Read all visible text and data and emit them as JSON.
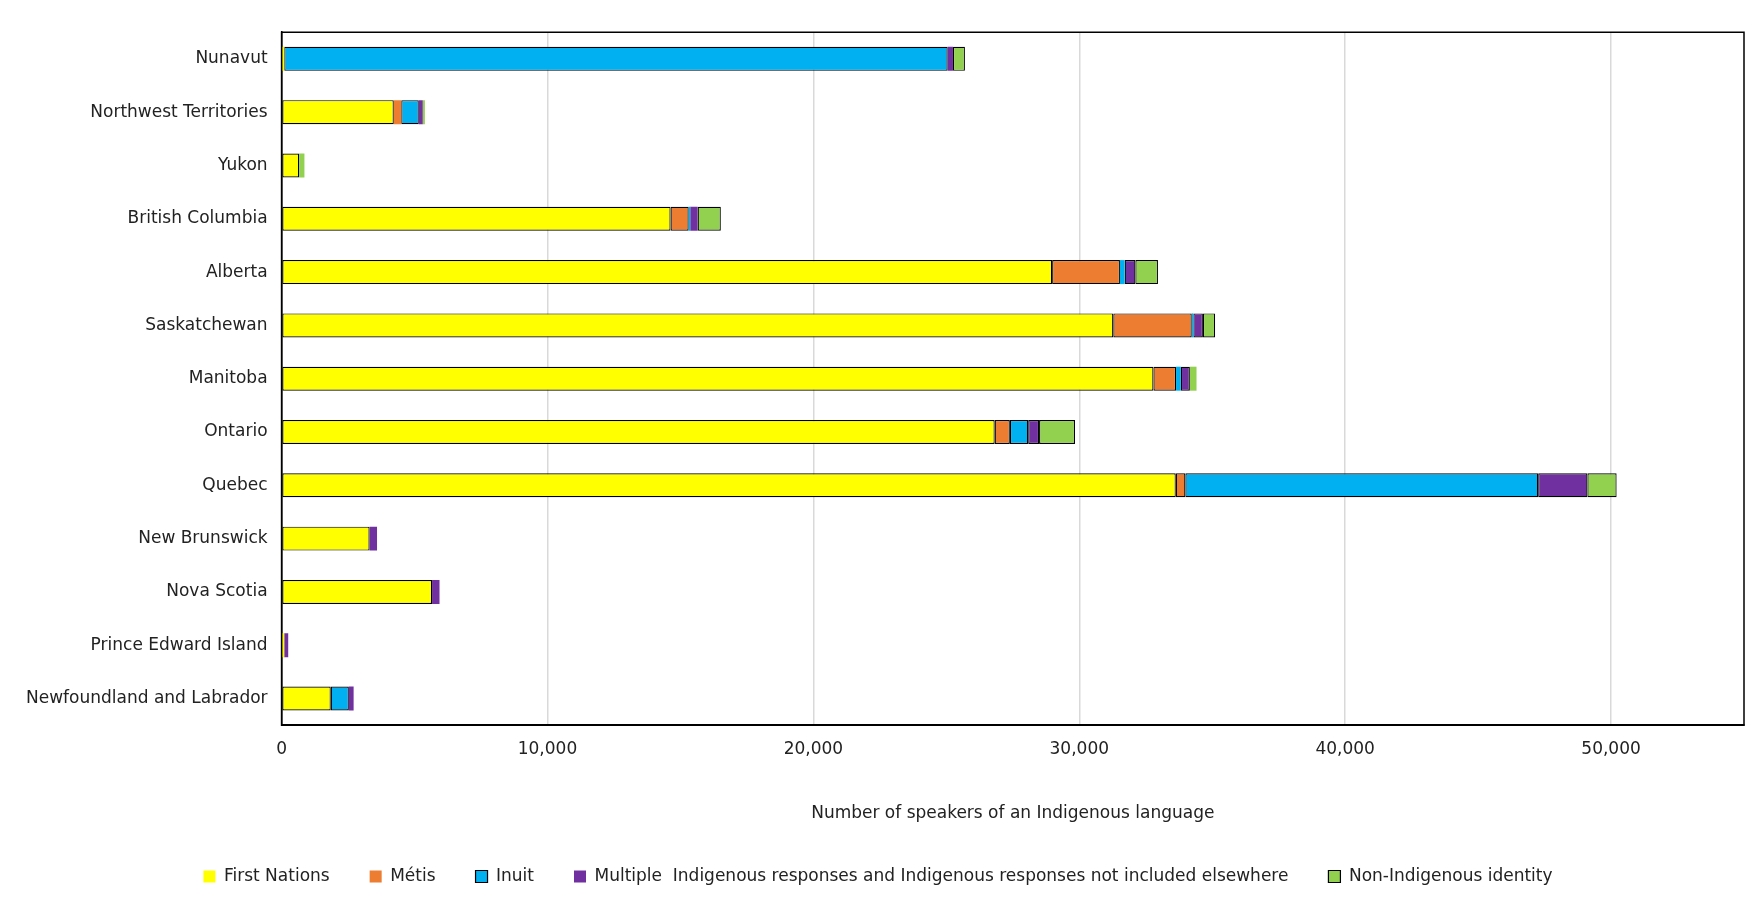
{
  "chart_data": {
    "type": "bar",
    "orientation": "horizontal",
    "stacked": true,
    "xlabel": "Number of speakers of an Indigenous language",
    "categories": [
      "Nunavut",
      "Northwest Territories",
      "Yukon",
      "British Columbia",
      "Alberta",
      "Saskatchewan",
      "Manitoba",
      "Ontario",
      "Quebec",
      "New Brunswick",
      "Nova Scotia",
      "Prince Edward Island",
      "Newfoundland and Labrador"
    ],
    "series": [
      {
        "name": "First Nations",
        "color": "#ffff00",
        "values": [
          100,
          4220,
          660,
          14630,
          28980,
          31280,
          32790,
          26820,
          33630,
          3310,
          5660,
          100,
          1850
        ]
      },
      {
        "name": "Métis",
        "color": "#ed7d31",
        "values": [
          0,
          280,
          0,
          680,
          2550,
          2950,
          850,
          570,
          360,
          0,
          0,
          0,
          0
        ]
      },
      {
        "name": "Inuit",
        "color": "#00b0f0",
        "values": [
          24950,
          660,
          0,
          60,
          180,
          60,
          180,
          690,
          13270,
          0,
          0,
          0,
          680
        ]
      },
      {
        "name": "Multiple  Indigenous responses and Indigenous responses not included elsewhere",
        "color": "#7030a0",
        "values": [
          200,
          150,
          0,
          280,
          400,
          360,
          340,
          410,
          1850,
          280,
          280,
          150,
          180
        ]
      },
      {
        "name": "Non-Indigenous identity",
        "color": "#92d050",
        "values": [
          450,
          80,
          200,
          870,
          850,
          460,
          250,
          1350,
          1100,
          0,
          0,
          0,
          0
        ]
      }
    ],
    "xlim": [
      0,
      55000
    ],
    "xticks": [
      0,
      {
        "value": 10000,
        "label": "10,000"
      },
      {
        "value": 20000,
        "label": "20,000"
      },
      {
        "value": 30000,
        "label": "30,000"
      },
      {
        "value": 40000,
        "label": "40,000"
      },
      {
        "value": 50000,
        "label": "50,000"
      }
    ],
    "grid": "x",
    "legend": "bottom"
  }
}
